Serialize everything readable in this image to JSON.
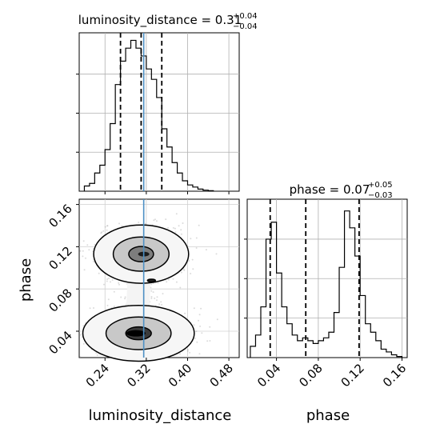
{
  "chart_data": [
    {
      "type": "histogram",
      "panel": "luminosity_distance marginal",
      "title": {
        "main": "luminosity_distance = 0.31",
        "sup": "+0.04",
        "sub": "−0.04"
      },
      "xlim": [
        0.19,
        0.5
      ],
      "xticks": [
        0.24,
        0.32,
        0.4,
        0.48
      ],
      "bins_x": [
        0.2,
        0.21,
        0.22,
        0.23,
        0.24,
        0.25,
        0.26,
        0.27,
        0.28,
        0.29,
        0.3,
        0.31,
        0.32,
        0.33,
        0.34,
        0.35,
        0.36,
        0.37,
        0.38,
        0.39,
        0.4,
        0.41,
        0.42,
        0.43,
        0.44,
        0.45
      ],
      "counts": [
        0.1,
        0.15,
        0.35,
        0.5,
        0.8,
        1.3,
        2.05,
        2.5,
        2.75,
        2.9,
        2.75,
        2.6,
        2.35,
        2.15,
        1.8,
        1.2,
        0.85,
        0.55,
        0.35,
        0.2,
        0.12,
        0.08,
        0.04,
        0.02,
        0.01
      ],
      "quantile_lines": [
        0.27,
        0.31,
        0.35
      ],
      "truth": 0.315
    },
    {
      "type": "scatter-contour",
      "panel": "phase vs luminosity_distance",
      "xlabel": "luminosity_distance",
      "ylabel": "phase",
      "xlim": [
        0.19,
        0.5
      ],
      "ylim": [
        0.015,
        0.165
      ],
      "xticks": [
        0.24,
        0.32,
        0.4,
        0.48
      ],
      "yticks": [
        0.04,
        0.08,
        0.12,
        0.16
      ],
      "modes": [
        {
          "center": [
            0.31,
            0.113
          ],
          "spread": [
            0.04,
            0.012
          ]
        },
        {
          "center": [
            0.305,
            0.038
          ],
          "spread": [
            0.045,
            0.011
          ]
        },
        {
          "center": [
            0.33,
            0.088
          ],
          "spread": [
            0.003,
            0.001
          ]
        }
      ],
      "truth_x": 0.315
    },
    {
      "type": "histogram",
      "panel": "phase marginal",
      "title": {
        "main": "phase = 0.07",
        "sup": "+0.05",
        "sub": "−0.03"
      },
      "xlabel": "phase",
      "xlim": [
        0.012,
        0.165
      ],
      "xticks": [
        0.04,
        0.08,
        0.12,
        0.16
      ],
      "bins_x": [
        0.015,
        0.02,
        0.025,
        0.03,
        0.035,
        0.04,
        0.045,
        0.05,
        0.055,
        0.06,
        0.065,
        0.07,
        0.075,
        0.08,
        0.085,
        0.09,
        0.095,
        0.1,
        0.105,
        0.11,
        0.115,
        0.12,
        0.125,
        0.13,
        0.135,
        0.14,
        0.145,
        0.15,
        0.155,
        0.16
      ],
      "counts": [
        0.2,
        0.4,
        0.9,
        2.1,
        2.4,
        1.5,
        0.9,
        0.6,
        0.4,
        0.3,
        0.35,
        0.3,
        0.25,
        0.3,
        0.35,
        0.45,
        0.8,
        1.6,
        2.6,
        2.3,
        1.8,
        1.1,
        0.6,
        0.45,
        0.3,
        0.15,
        0.1,
        0.05,
        0.02
      ],
      "quantile_lines": [
        0.034,
        0.068,
        0.119
      ]
    }
  ]
}
